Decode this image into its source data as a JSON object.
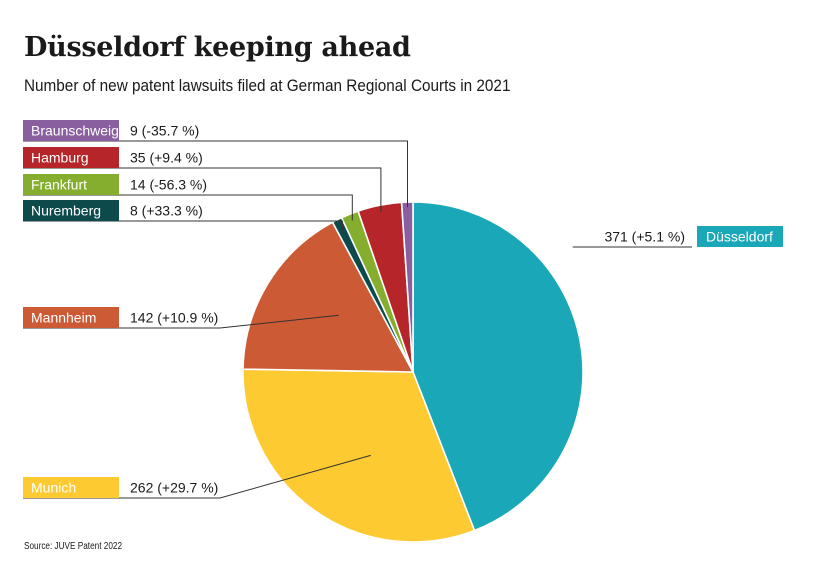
{
  "title": "Düsseldorf keeping ahead",
  "subtitle": "Number of new patent lawsuits filed at German Regional Courts in 2021",
  "source": "Source: JUVE Patent 2022",
  "chart_data": {
    "type": "pie",
    "title": "Düsseldorf keeping ahead",
    "subtitle": "Number of new patent lawsuits filed at German Regional Courts in 2021",
    "start": "12 o'clock",
    "direction": "clockwise",
    "slices": [
      {
        "name": "Düsseldorf",
        "value": 371,
        "label": "371 (+5.1 %)",
        "color": "#1aa8b8"
      },
      {
        "name": "Munich",
        "value": 262,
        "label": "262 (+29.7 %)",
        "color": "#fdca32"
      },
      {
        "name": "Mannheim",
        "value": 142,
        "label": "142 (+10.9 %)",
        "color": "#cc5a35"
      },
      {
        "name": "Nuremberg",
        "value": 8,
        "label": "8 (+33.3 %)",
        "color": "#0c4a4c"
      },
      {
        "name": "Frankfurt",
        "value": 14,
        "label": "14 (-56.3 %)",
        "color": "#86ae2e"
      },
      {
        "name": "Hamburg",
        "value": 35,
        "label": "35 (+9.4 %)",
        "color": "#b5252a"
      },
      {
        "name": "Braunschweig",
        "value": 9,
        "label": "9 (-35.7 %)",
        "color": "#8a5f9f"
      }
    ]
  }
}
